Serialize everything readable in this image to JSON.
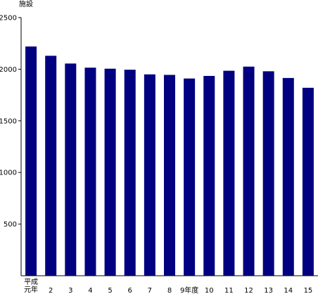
{
  "chart_data": {
    "type": "bar",
    "ylabel": "施設",
    "ylim": [
      0,
      2500
    ],
    "yticks": [
      500,
      1000,
      1500,
      2000,
      2500
    ],
    "grid": false,
    "legend": "none",
    "bar_color": "#000080",
    "categories": [
      [
        "平成",
        "元年"
      ],
      [
        "2"
      ],
      [
        "3"
      ],
      [
        "4"
      ],
      [
        "5"
      ],
      [
        "6"
      ],
      [
        "7"
      ],
      [
        "8"
      ],
      [
        "9年度"
      ],
      [
        "10"
      ],
      [
        "11"
      ],
      [
        "12"
      ],
      [
        "13"
      ],
      [
        "14"
      ],
      [
        "15"
      ]
    ],
    "values": [
      2220,
      2130,
      2055,
      2015,
      2005,
      1995,
      1950,
      1945,
      1910,
      1935,
      1985,
      2025,
      1980,
      1915,
      1820
    ]
  }
}
